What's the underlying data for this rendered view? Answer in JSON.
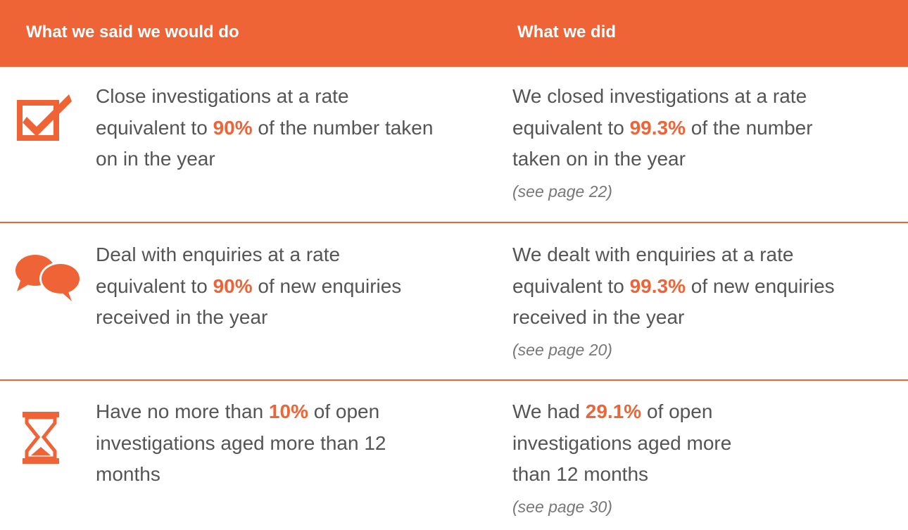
{
  "header": {
    "col1": "What we said we would do",
    "col2": "What we did"
  },
  "rows": [
    {
      "commitment": [
        "Close investigations at a rate equivalent to ",
        "90%",
        " of the number taken on in the year"
      ],
      "result": [
        "We closed investigations at a rate equivalent to ",
        "99.3%",
        " of the number taken on in the year"
      ],
      "reference": "(see page 22)"
    },
    {
      "commitment": [
        "Deal with enquiries at a rate equivalent to ",
        "90%",
        " of new enquiries received in the year"
      ],
      "result": [
        "We dealt with enquiries at a rate equivalent to ",
        "99.3%",
        " of new enquiries received in the year"
      ],
      "reference": "(see page 20)"
    },
    {
      "commitment": [
        "Have no more than ",
        "10%",
        " of open investigations aged more than 12 months"
      ],
      "result": [
        "We had ",
        "29.1%",
        " of open investigations aged more than 12 months"
      ],
      "reference": "(see page 30)"
    }
  ]
}
